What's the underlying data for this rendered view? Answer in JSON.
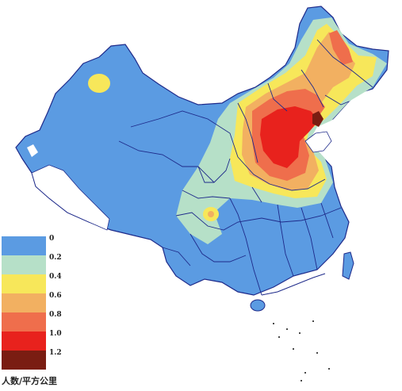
{
  "legend": {
    "title": "人数/平方公里",
    "ticks": [
      "0",
      "0.2",
      "0.4",
      "0.6",
      "0.8",
      "1.0",
      "1.2"
    ],
    "colors": [
      "#5b9be2",
      "#b6e0c8",
      "#f7e75a",
      "#f2b061",
      "#ef6e4c",
      "#e8221d",
      "#7a1d12"
    ]
  },
  "palette": {
    "land_blue": "#5b9be2",
    "green": "#b6e0c8",
    "yellow": "#f7e75a",
    "orange": "#f2b061",
    "red_light": "#ef6e4c",
    "red": "#e8221d",
    "dark_red": "#7a1d12",
    "border": "#1e2a8a"
  }
}
